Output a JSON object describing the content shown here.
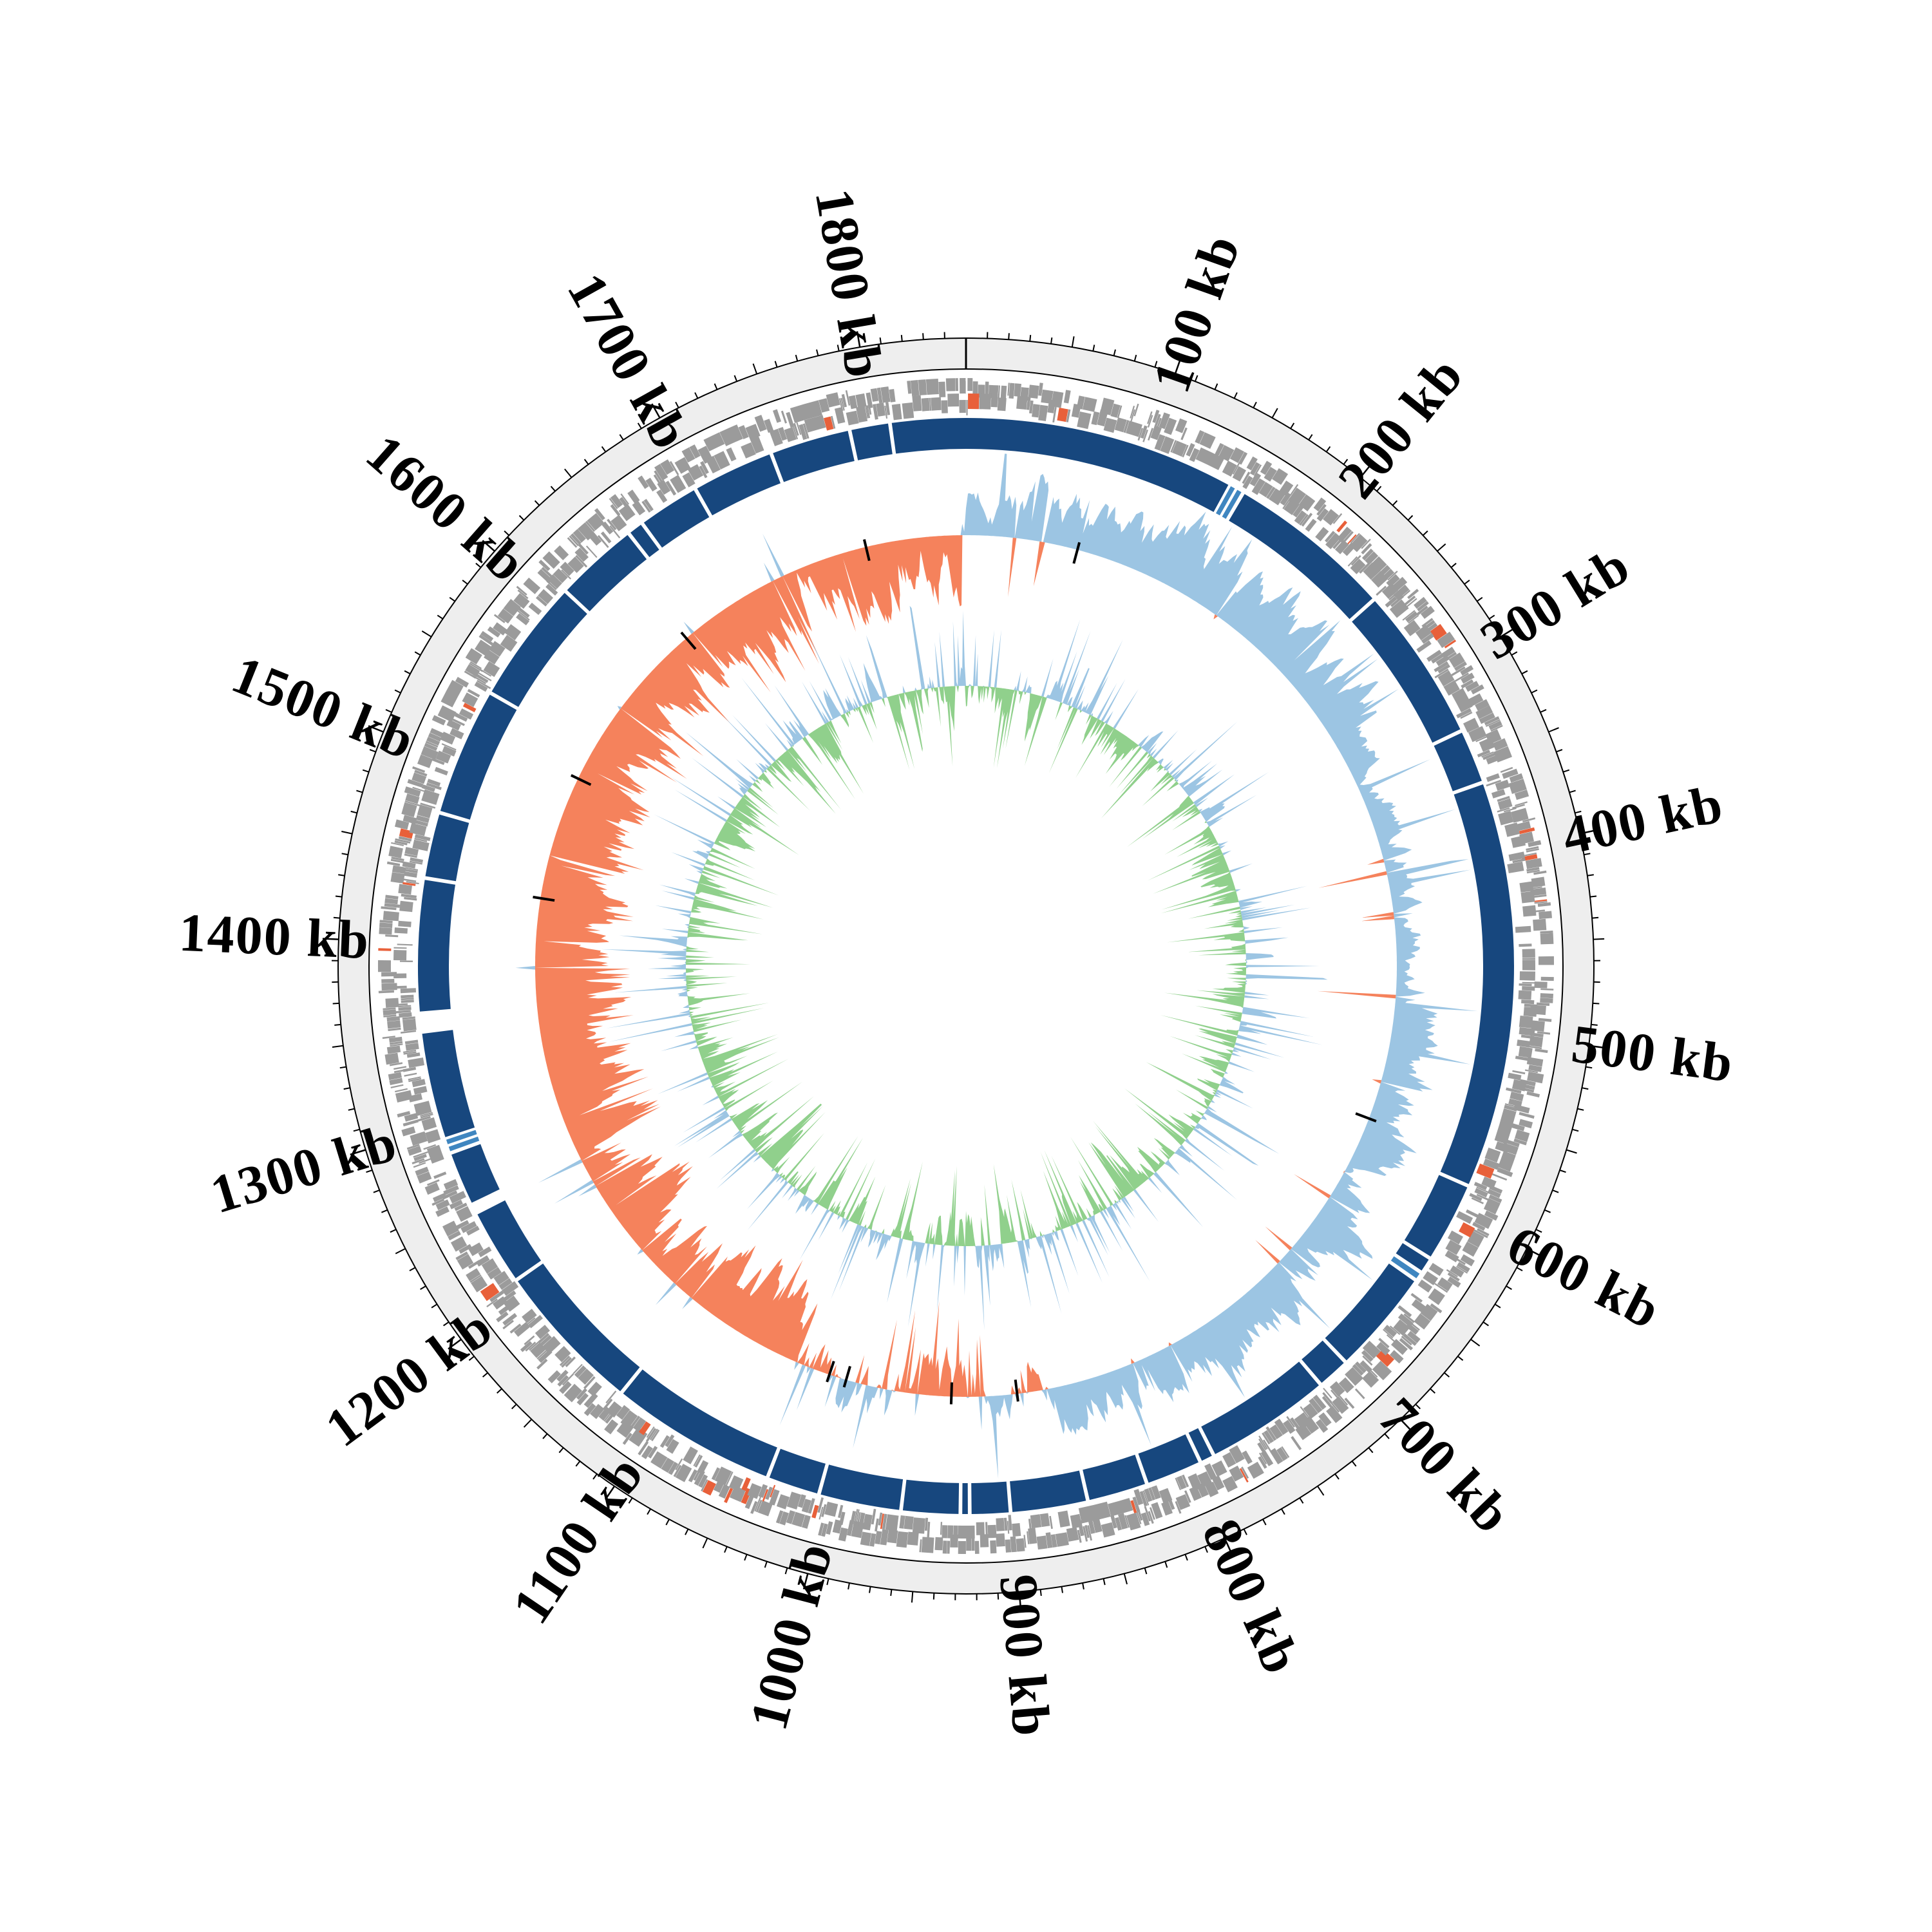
{
  "page": {
    "background": "#ffffff",
    "description": "Circos-style circular genome plot"
  },
  "chart_data": {
    "type": "circular-genome-plot",
    "genome_length_kb": 1850,
    "origin_position_kb": 0,
    "direction": "clockwise",
    "scale": {
      "unit": "kb",
      "minor_tick_kb": 10,
      "medium_tick_kb": 50,
      "major_tick_kb": 100,
      "tick_labels": [
        {
          "kb": 100,
          "label": "100 kb"
        },
        {
          "kb": 200,
          "label": "200 kb"
        },
        {
          "kb": 300,
          "label": "300 kb"
        },
        {
          "kb": 400,
          "label": "400 kb"
        },
        {
          "kb": 500,
          "label": "500 kb"
        },
        {
          "kb": 600,
          "label": "600 kb"
        },
        {
          "kb": 700,
          "label": "700 kb"
        },
        {
          "kb": 800,
          "label": "800 kb"
        },
        {
          "kb": 900,
          "label": "900 kb"
        },
        {
          "kb": 1000,
          "label": "1000 kb"
        },
        {
          "kb": 1100,
          "label": "1100 kb"
        },
        {
          "kb": 1200,
          "label": "1200 kb"
        },
        {
          "kb": 1300,
          "label": "1300 kb"
        },
        {
          "kb": 1400,
          "label": "1400 kb"
        },
        {
          "kb": 1500,
          "label": "1500 kb"
        },
        {
          "kb": 1600,
          "label": "1600 kb"
        },
        {
          "kb": 1700,
          "label": "1700 kb"
        },
        {
          "kb": 1800,
          "label": "1800 kb"
        }
      ]
    },
    "colors": {
      "scale_ring_fill": "#eeeeee",
      "scale_ring_border": "#000000",
      "tick": "#000000",
      "gene_tile": "#9b9b9b",
      "gene_tile_highlight": "#e8603a",
      "contig": "#17477e",
      "contig_alt": "#3f86c0",
      "area_positive_blue": "#9cc5e3",
      "area_negative_orange": "#f5825c",
      "area_negative_green": "#90d08c",
      "black_mark": "#000000"
    },
    "tracks_outer_to_inner": [
      "scale-ring-with-ticks",
      "gene-tiles-forward-strand",
      "gene-tiles-reverse-strand",
      "assembly-contig-ring",
      "gc-skew-area (blue positive / orange negative)",
      "inner-signal-area (blue positive / green negative)"
    ],
    "tracks": {
      "genes_forward": {
        "type": "tiles",
        "seed": 11,
        "highlight_fraction": 0.024
      },
      "genes_reverse": {
        "type": "tiles",
        "seed": 23,
        "highlight_fraction": 0.024
      },
      "contigs": {
        "type": "segments",
        "segments_kb": [
          [
            0,
            147
          ],
          [
            157,
            246
          ],
          [
            248,
            331
          ],
          [
            333,
            361
          ],
          [
            363,
            583
          ],
          [
            585,
            627
          ],
          [
            629,
            636
          ],
          [
            643,
            699
          ],
          [
            701,
            717
          ],
          [
            719,
            786
          ],
          [
            788,
            794
          ],
          [
            796,
            825
          ],
          [
            827,
            858
          ],
          [
            860,
            900
          ],
          [
            902,
            922
          ],
          [
            924,
            927
          ],
          [
            929,
            959
          ],
          [
            961,
            1004
          ],
          [
            1006,
            1033
          ],
          [
            1035,
            1124
          ],
          [
            1126,
            1207
          ],
          [
            1209,
            1249
          ],
          [
            1256,
            1284
          ],
          [
            1294,
            1351
          ],
          [
            1363,
            1434
          ],
          [
            1436,
            1470
          ],
          [
            1472,
            1540
          ],
          [
            1542,
            1608
          ],
          [
            1610,
            1654
          ],
          [
            1656,
            1663
          ],
          [
            1665,
            1697
          ],
          [
            1699,
            1742
          ],
          [
            1744,
            1786
          ],
          [
            1788,
            1808
          ],
          [
            1810,
            1850
          ]
        ],
        "alt_segments_kb": [
          [
            148.5,
            151
          ],
          [
            152.5,
            155
          ],
          [
            638,
            641
          ],
          [
            1286,
            1288.5
          ],
          [
            1290,
            1292.5
          ]
        ]
      },
      "gc_skew": {
        "type": "area",
        "seed": 7,
        "samples": 1500,
        "spike_probability": 0.06,
        "spike_positive_share": 0.5,
        "bias_regions_kb": [
          [
            0,
            130,
            0.55,
            0.8
          ],
          [
            130,
            300,
            0.68,
            0.8
          ],
          [
            300,
            470,
            0.26,
            0.45
          ],
          [
            470,
            640,
            0.42,
            0.7
          ],
          [
            640,
            865,
            0.6,
            0.85
          ],
          [
            865,
            960,
            -0.05,
            1.15
          ],
          [
            960,
            1045,
            0.05,
            1.15
          ],
          [
            1045,
            1180,
            -0.55,
            0.9
          ],
          [
            1180,
            1420,
            -0.68,
            0.9
          ],
          [
            1420,
            1580,
            -0.74,
            0.9
          ],
          [
            1580,
            1700,
            -0.58,
            0.9
          ],
          [
            1700,
            1847,
            -0.5,
            0.9
          ],
          [
            1847,
            1850,
            0.3,
            0.6
          ]
        ],
        "black_marks_kb": [
          77,
          569,
          890,
          935,
          1008,
          1020,
          1434,
          1520,
          1642,
          1781
        ]
      },
      "inner_signal": {
        "type": "area",
        "seed": 19,
        "samples": 1500,
        "spike_probability": 0.2,
        "spike_positive_share": 0.56,
        "bias_regions_kb": [
          [
            0,
            250,
            -0.1,
            1
          ],
          [
            250,
            430,
            -0.16,
            1
          ],
          [
            430,
            900,
            -0.1,
            1
          ],
          [
            900,
            1300,
            -0.15,
            1
          ],
          [
            1300,
            1850,
            -0.11,
            1
          ]
        ],
        "black_marks_kb": []
      }
    }
  }
}
